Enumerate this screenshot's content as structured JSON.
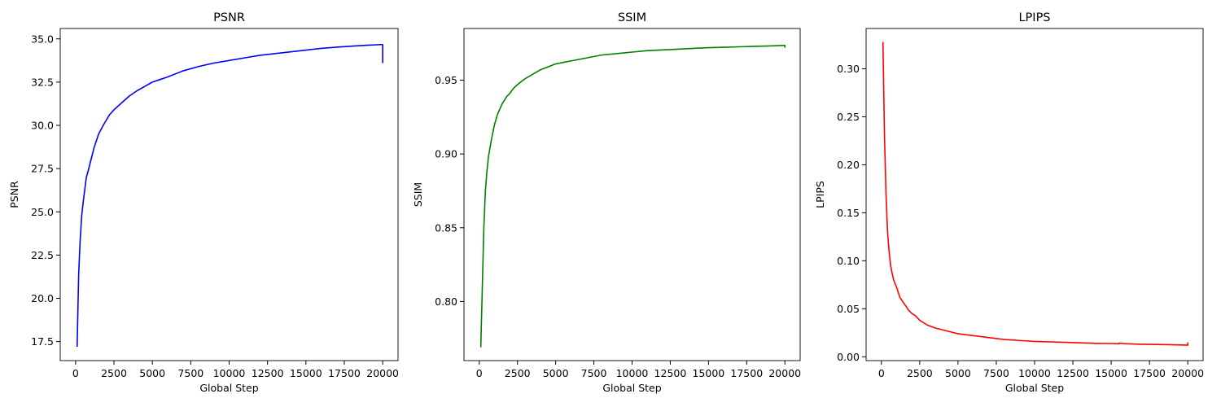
{
  "chart_data": [
    {
      "type": "line",
      "title": "PSNR",
      "xlabel": "Global Step",
      "ylabel": "PSNR",
      "xlim": [
        -1000,
        21000
      ],
      "ylim": [
        16.4,
        35.6
      ],
      "xticks": [
        0,
        2500,
        5000,
        7500,
        10000,
        12500,
        15000,
        17500,
        20000
      ],
      "yticks": [
        17.5,
        20.0,
        22.5,
        25.0,
        27.5,
        30.0,
        32.5,
        35.0
      ],
      "ytick_labels": [
        "17.5",
        "20.0",
        "22.5",
        "25.0",
        "27.5",
        "30.0",
        "32.5",
        "35.0"
      ],
      "grid": false,
      "color": "#0000ff",
      "x": [
        100,
        200,
        300,
        400,
        500,
        600,
        700,
        800,
        1000,
        1200,
        1500,
        1800,
        2000,
        2200,
        2500,
        3000,
        3500,
        4000,
        4500,
        5000,
        5500,
        6000,
        7000,
        8000,
        9000,
        10000,
        11000,
        12000,
        13000,
        14000,
        15000,
        16000,
        17000,
        18000,
        19000,
        19900,
        20000,
        20000
      ],
      "values": [
        17.2,
        21.4,
        23.4,
        24.8,
        25.6,
        26.3,
        27.0,
        27.3,
        28.0,
        28.7,
        29.5,
        30.0,
        30.3,
        30.6,
        30.9,
        31.3,
        31.7,
        32.0,
        32.25,
        32.5,
        32.65,
        32.8,
        33.15,
        33.4,
        33.6,
        33.75,
        33.9,
        34.05,
        34.15,
        34.25,
        34.35,
        34.45,
        34.52,
        34.58,
        34.63,
        34.67,
        34.67,
        33.6
      ]
    },
    {
      "type": "line",
      "title": "SSIM",
      "xlabel": "Global Step",
      "ylabel": "SSIM",
      "xlim": [
        -1000,
        21000
      ],
      "ylim": [
        0.76,
        0.985
      ],
      "xticks": [
        0,
        2500,
        5000,
        7500,
        10000,
        12500,
        15000,
        17500,
        20000
      ],
      "yticks": [
        0.8,
        0.85,
        0.9,
        0.95
      ],
      "ytick_labels": [
        "0.80",
        "0.85",
        "0.90",
        "0.95"
      ],
      "grid": false,
      "color": "#008000",
      "x": [
        100,
        200,
        300,
        400,
        500,
        600,
        700,
        800,
        1000,
        1200,
        1500,
        1800,
        2000,
        2200,
        2500,
        3000,
        3500,
        4000,
        4500,
        5000,
        5500,
        6000,
        7000,
        8000,
        9000,
        10000,
        11000,
        12000,
        13000,
        14000,
        15000,
        16000,
        17000,
        18000,
        19000,
        19900,
        20000,
        20000
      ],
      "values": [
        0.769,
        0.81,
        0.85,
        0.875,
        0.888,
        0.898,
        0.904,
        0.91,
        0.92,
        0.927,
        0.934,
        0.939,
        0.941,
        0.944,
        0.947,
        0.951,
        0.954,
        0.957,
        0.959,
        0.961,
        0.962,
        0.963,
        0.965,
        0.967,
        0.968,
        0.969,
        0.97,
        0.9705,
        0.971,
        0.9715,
        0.972,
        0.9723,
        0.9726,
        0.9729,
        0.9732,
        0.9735,
        0.9735,
        0.972
      ]
    },
    {
      "type": "line",
      "title": "LPIPS",
      "xlabel": "Global Step",
      "ylabel": "LPIPS",
      "xlim": [
        -1000,
        21000
      ],
      "ylim": [
        -0.004,
        0.342
      ],
      "xticks": [
        0,
        2500,
        5000,
        7500,
        10000,
        12500,
        15000,
        17500,
        20000
      ],
      "yticks": [
        0.0,
        0.05,
        0.1,
        0.15,
        0.2,
        0.25,
        0.3
      ],
      "ytick_labels": [
        "0.00",
        "0.05",
        "0.10",
        "0.15",
        "0.20",
        "0.25",
        "0.30"
      ],
      "grid": false,
      "color": "#ff0000",
      "x": [
        100,
        200,
        300,
        400,
        500,
        600,
        700,
        800,
        1000,
        1200,
        1500,
        1800,
        2000,
        2200,
        2500,
        3000,
        3500,
        4000,
        4500,
        5000,
        5500,
        6000,
        7000,
        8000,
        9000,
        10000,
        11000,
        12000,
        13000,
        14000,
        15000,
        15500,
        15500,
        16000,
        17000,
        18000,
        19000,
        19900,
        20000,
        20000
      ],
      "values": [
        0.328,
        0.23,
        0.17,
        0.13,
        0.11,
        0.095,
        0.087,
        0.08,
        0.072,
        0.062,
        0.055,
        0.048,
        0.045,
        0.043,
        0.038,
        0.033,
        0.03,
        0.028,
        0.026,
        0.024,
        0.023,
        0.022,
        0.02,
        0.018,
        0.017,
        0.016,
        0.0155,
        0.015,
        0.0145,
        0.014,
        0.0138,
        0.0135,
        0.0142,
        0.0135,
        0.013,
        0.0128,
        0.0125,
        0.0122,
        0.012,
        0.015
      ]
    }
  ]
}
